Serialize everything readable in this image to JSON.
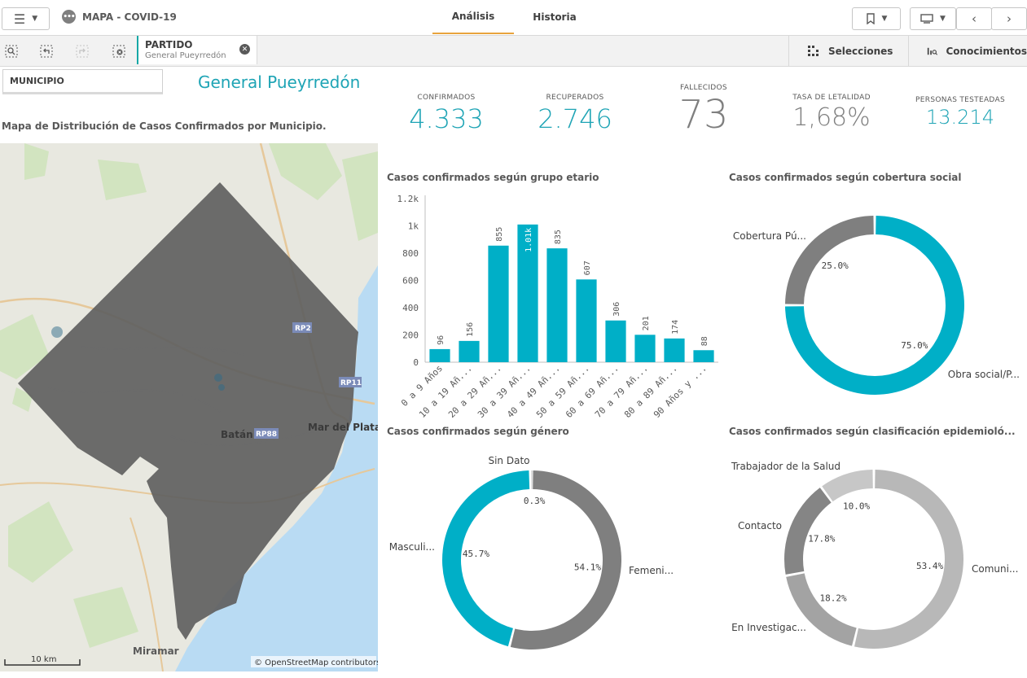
{
  "header": {
    "app_title": "MAPA - COVID-19",
    "app_icon": "more-dots-icon",
    "tabs": [
      {
        "label": "Análisis",
        "active": true
      },
      {
        "label": "Historia",
        "active": false
      }
    ],
    "accent_color": "#e8a33d"
  },
  "selections_bar": {
    "chip_title": "PARTIDO",
    "chip_value": "General Pueyrredón",
    "selecciones_label": "Selecciones",
    "conocimientos_label": "Conocimientos"
  },
  "filter": {
    "label": "MUNICIPIO",
    "selected": "General Pueyrredón"
  },
  "map": {
    "title": "Mapa de Distribución de Casos Confirmados por Municipio.",
    "labels": [
      "Mar del Plata",
      "Batán",
      "Miramar"
    ],
    "shields": [
      "RP2",
      "RP11",
      "RP88"
    ],
    "scale": "10 km",
    "attribution": "© OpenStreetMap contributors"
  },
  "kpis": [
    {
      "label": "CONFIRMADOS",
      "value": "4.333",
      "color": "#1ea4b5"
    },
    {
      "label": "RECUPERADOS",
      "value": "2.746",
      "color": "#1ea4b5"
    },
    {
      "label": "FALLECIDOS",
      "value": "73",
      "color": "#7f7f7f"
    },
    {
      "label": "TASA DE LETALIDAD",
      "value": "1,68%",
      "color": "#7f7f7f"
    },
    {
      "label": "PERSONAS TESTEADAS",
      "value": "13.214",
      "color": "#1ea4b5"
    }
  ],
  "titles": {
    "age": "Casos confirmados según grupo etario",
    "coverage": "Casos confirmados según cobertura social",
    "gender": "Casos confirmados según género",
    "epi": "Casos confirmados según clasificación epidemioló..."
  },
  "chart_data": [
    {
      "type": "bar",
      "title": "Casos confirmados según grupo etario",
      "categories": [
        "0 a 9 Años",
        "10 a 19 Añ...",
        "20 a 29 Añ...",
        "30 a 39 Añ...",
        "40 a 49 Añ...",
        "50 a 59 Añ...",
        "60 a 69 Añ...",
        "70 a 79 Añ...",
        "80 a 89 Añ...",
        "90 Años y ..."
      ],
      "values": [
        96,
        156,
        855,
        1010,
        835,
        607,
        306,
        201,
        174,
        88
      ],
      "data_labels": [
        "96",
        "156",
        "855",
        "1.01k",
        "835",
        "607",
        "306",
        "201",
        "174",
        "88"
      ],
      "yticks": [
        "0",
        "200",
        "400",
        "600",
        "800",
        "1k",
        "1.2k"
      ],
      "ylim": [
        0,
        1200
      ],
      "color": "#00afc7"
    },
    {
      "type": "pie",
      "title": "Casos confirmados según cobertura social",
      "slices": [
        {
          "label": "Obra social/P...",
          "value": 75.0,
          "pct": "75.0%",
          "color": "#00afc7"
        },
        {
          "label": "Cobertura Pú...",
          "value": 25.0,
          "pct": "25.0%",
          "color": "#7f7f7f"
        }
      ]
    },
    {
      "type": "pie",
      "title": "Casos confirmados según género",
      "slices": [
        {
          "label": "Femeni...",
          "value": 54.1,
          "pct": "54.1%",
          "color": "#7f7f7f"
        },
        {
          "label": "Masculi...",
          "value": 45.7,
          "pct": "45.7%",
          "color": "#00afc7"
        },
        {
          "label": "Sin Dato",
          "value": 0.3,
          "pct": "0.3%",
          "color": "#bfbfbf"
        }
      ]
    },
    {
      "type": "pie",
      "title": "Casos confirmados según clasificación epidemioló...",
      "slices": [
        {
          "label": "Comuni...",
          "value": 53.4,
          "pct": "53.4%",
          "color": "#b8b8b8"
        },
        {
          "label": "En Investigac...",
          "value": 18.2,
          "pct": "18.2%",
          "color": "#a3a3a3"
        },
        {
          "label": "Contacto",
          "value": 17.8,
          "pct": "17.8%",
          "color": "#858585"
        },
        {
          "label": "Trabajador de la Salud",
          "value": 10.0,
          "pct": "10.0%",
          "color": "#c7c7c7"
        }
      ]
    }
  ]
}
